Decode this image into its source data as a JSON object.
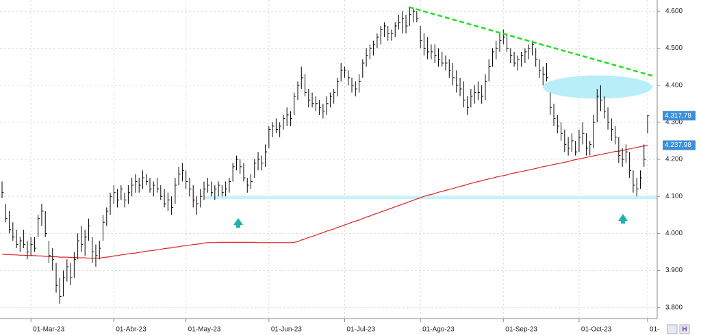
{
  "chart_data": {
    "type": "ohlc",
    "color": "#000000",
    "categories": [
      null,
      null,
      null,
      null,
      null,
      null,
      null,
      null,
      "01-Mar-23",
      null,
      null,
      null,
      null,
      null,
      null,
      null,
      null,
      null,
      null,
      null,
      null,
      null,
      null,
      null,
      null,
      null,
      null,
      null,
      null,
      null,
      null,
      "01-Abr-23",
      null,
      null,
      null,
      null,
      null,
      null,
      null,
      null,
      null,
      null,
      null,
      null,
      null,
      null,
      null,
      null,
      null,
      null,
      null,
      "01-May-23",
      null,
      null,
      null,
      null,
      null,
      null,
      null,
      null,
      null,
      null,
      null,
      null,
      null,
      null,
      null,
      null,
      null,
      null,
      null,
      null,
      null,
      null,
      "01-Jun-23",
      null,
      null,
      null,
      null,
      null,
      null,
      null,
      null,
      null,
      null,
      null,
      null,
      null,
      null,
      null,
      null,
      null,
      null,
      null,
      null,
      "01-Jul-23",
      null,
      null,
      null,
      null,
      null,
      null,
      null,
      null,
      null,
      null,
      null,
      null,
      null,
      null,
      null,
      null,
      null,
      null,
      null,
      null,
      "01-Ago-23",
      null,
      null,
      null,
      null,
      null,
      null,
      null,
      null,
      null,
      null,
      null,
      null,
      null,
      null,
      null,
      null,
      null,
      null,
      null,
      null,
      null,
      null,
      "01-Sep-23",
      null,
      null,
      null,
      null,
      null,
      null,
      null,
      null,
      null,
      null,
      null,
      null,
      null,
      null,
      null,
      null,
      null,
      null,
      null,
      null,
      "01-Oct-23",
      null,
      null,
      null,
      null,
      null,
      null,
      null,
      null,
      null,
      null,
      null,
      null,
      null,
      null,
      null,
      null,
      null,
      null,
      "01-"
    ],
    "high": [
      4.14,
      4.08,
      4.06,
      4.03,
      4.01,
      3.99,
      4.01,
      3.98,
      3.99,
      3.99,
      4.05,
      4.08,
      4.06,
      3.98,
      3.96,
      3.92,
      3.88,
      3.9,
      3.93,
      3.92,
      3.95,
      4.0,
      4.02,
      4.01,
      4.04,
      3.99,
      3.97,
      3.98,
      4.05,
      4.07,
      4.11,
      4.13,
      4.12,
      4.13,
      4.11,
      4.13,
      4.15,
      4.16,
      4.15,
      4.17,
      4.16,
      4.15,
      4.14,
      4.15,
      4.13,
      4.12,
      4.11,
      4.1,
      4.15,
      4.18,
      4.19,
      4.17,
      4.15,
      4.13,
      4.1,
      4.12,
      4.14,
      4.15,
      4.14,
      4.13,
      4.14,
      4.13,
      4.14,
      4.15,
      4.19,
      4.21,
      4.2,
      4.19,
      4.15,
      4.16,
      4.2,
      4.22,
      4.21,
      4.24,
      4.29,
      4.3,
      4.31,
      4.3,
      4.32,
      4.34,
      4.33,
      4.38,
      4.41,
      4.45,
      4.43,
      4.39,
      4.38,
      4.37,
      4.36,
      4.35,
      4.37,
      4.38,
      4.39,
      4.42,
      4.46,
      4.45,
      4.44,
      4.42,
      4.41,
      4.43,
      4.47,
      4.5,
      4.51,
      4.52,
      4.54,
      4.56,
      4.57,
      4.56,
      4.55,
      4.57,
      4.59,
      4.6,
      4.59,
      4.61,
      4.61,
      4.6,
      4.56,
      4.54,
      4.53,
      4.51,
      4.51,
      4.5,
      4.49,
      4.48,
      4.47,
      4.46,
      4.44,
      4.42,
      4.41,
      4.37,
      4.39,
      4.4,
      4.41,
      4.4,
      4.43,
      4.47,
      4.5,
      4.52,
      4.54,
      4.55,
      4.54,
      4.5,
      4.49,
      4.48,
      4.49,
      4.5,
      4.51,
      4.52,
      4.5,
      4.47,
      4.45,
      4.46,
      4.38,
      4.35,
      4.32,
      4.3,
      4.28,
      4.26,
      4.27,
      4.25,
      4.28,
      4.3,
      4.27,
      4.25,
      4.32,
      4.39,
      4.4,
      4.37,
      4.34,
      4.31,
      4.29,
      4.26,
      4.23,
      4.24,
      4.22,
      4.17,
      4.15,
      4.17,
      4.24,
      4.32
    ],
    "low": [
      4.095,
      4.03,
      4.0,
      3.98,
      3.96,
      3.95,
      3.96,
      3.93,
      3.94,
      3.95,
      3.99,
      4.02,
      3.99,
      3.92,
      3.9,
      3.84,
      3.81,
      3.83,
      3.87,
      3.86,
      3.88,
      3.93,
      3.95,
      3.94,
      3.98,
      3.92,
      3.91,
      3.93,
      3.98,
      4.02,
      4.05,
      4.08,
      4.07,
      4.09,
      4.07,
      4.08,
      4.1,
      4.11,
      4.11,
      4.12,
      4.13,
      4.11,
      4.1,
      4.11,
      4.09,
      4.07,
      4.06,
      4.05,
      4.08,
      4.13,
      4.14,
      4.12,
      4.1,
      4.07,
      4.05,
      4.07,
      4.09,
      4.11,
      4.1,
      4.09,
      4.1,
      4.1,
      4.1,
      4.11,
      4.14,
      4.17,
      4.16,
      4.14,
      4.11,
      4.12,
      4.15,
      4.17,
      4.17,
      4.18,
      4.23,
      4.26,
      4.27,
      4.26,
      4.28,
      4.29,
      4.29,
      4.32,
      4.36,
      4.39,
      4.37,
      4.34,
      4.34,
      4.33,
      4.32,
      4.31,
      4.32,
      4.34,
      4.35,
      4.37,
      4.41,
      4.42,
      4.4,
      4.38,
      4.37,
      4.38,
      4.42,
      4.45,
      4.47,
      4.48,
      4.5,
      4.51,
      4.53,
      4.52,
      4.52,
      4.53,
      4.55,
      4.54,
      4.54,
      4.56,
      4.57,
      4.57,
      4.5,
      4.48,
      4.47,
      4.47,
      4.46,
      4.45,
      4.45,
      4.44,
      4.42,
      4.4,
      4.38,
      4.37,
      4.34,
      4.32,
      4.34,
      4.35,
      4.36,
      4.35,
      4.36,
      4.41,
      4.45,
      4.47,
      4.49,
      4.51,
      4.49,
      4.46,
      4.45,
      4.44,
      4.45,
      4.46,
      4.47,
      4.48,
      4.45,
      4.42,
      4.4,
      4.41,
      4.32,
      4.29,
      4.27,
      4.25,
      4.22,
      4.21,
      4.22,
      4.21,
      4.22,
      4.24,
      4.21,
      4.21,
      4.23,
      4.3,
      4.33,
      4.31,
      4.28,
      4.25,
      4.24,
      4.19,
      4.18,
      4.19,
      4.15,
      4.11,
      4.1,
      4.12,
      4.18,
      4.27
    ],
    "close": [
      4.11,
      4.04,
      4.01,
      3.99,
      3.97,
      3.98,
      3.97,
      3.95,
      3.97,
      3.96,
      4.04,
      4.06,
      4.0,
      3.94,
      3.93,
      3.86,
      3.83,
      3.88,
      3.91,
      3.88,
      3.93,
      3.98,
      3.97,
      3.99,
      4.02,
      3.95,
      3.94,
      3.96,
      4.03,
      4.06,
      4.1,
      4.11,
      4.09,
      4.12,
      4.09,
      4.11,
      4.13,
      4.14,
      4.13,
      4.15,
      4.14,
      4.12,
      4.13,
      4.12,
      4.1,
      4.08,
      4.09,
      4.07,
      4.13,
      4.16,
      4.17,
      4.14,
      4.12,
      4.09,
      4.08,
      4.1,
      4.12,
      4.13,
      4.11,
      4.12,
      4.13,
      4.11,
      4.12,
      4.14,
      4.18,
      4.2,
      4.18,
      4.15,
      4.13,
      4.14,
      4.19,
      4.2,
      4.19,
      4.22,
      4.28,
      4.29,
      4.28,
      4.29,
      4.31,
      4.32,
      4.31,
      4.37,
      4.4,
      4.42,
      4.38,
      4.36,
      4.35,
      4.35,
      4.34,
      4.33,
      4.35,
      4.37,
      4.38,
      4.41,
      4.44,
      4.44,
      4.42,
      4.4,
      4.39,
      4.41,
      4.46,
      4.48,
      4.5,
      4.51,
      4.53,
      4.55,
      4.56,
      4.54,
      4.54,
      4.56,
      4.57,
      4.58,
      4.56,
      4.59,
      4.6,
      4.58,
      4.52,
      4.5,
      4.49,
      4.49,
      4.48,
      4.47,
      4.46,
      4.46,
      4.44,
      4.42,
      4.4,
      4.39,
      4.36,
      4.34,
      4.37,
      4.38,
      4.38,
      4.37,
      4.41,
      4.45,
      4.49,
      4.5,
      4.52,
      4.53,
      4.5,
      4.48,
      4.46,
      4.47,
      4.48,
      4.49,
      4.5,
      4.51,
      4.47,
      4.44,
      4.43,
      4.42,
      4.34,
      4.31,
      4.29,
      4.27,
      4.24,
      4.23,
      4.25,
      4.22,
      4.26,
      4.27,
      4.23,
      4.24,
      4.3,
      4.37,
      4.36,
      4.33,
      4.3,
      4.28,
      4.26,
      4.21,
      4.2,
      4.22,
      4.17,
      4.13,
      4.12,
      4.15,
      4.2,
      4.3178
    ],
    "last_label": "4.317,78",
    "label_color": "#3d8fd8",
    "moving_average": {
      "color": "#e02020",
      "last_label": "4.237,98",
      "values": [
        3.944,
        3.943,
        3.943,
        3.942,
        3.942,
        3.941,
        3.941,
        3.94,
        3.94,
        3.94,
        3.939,
        3.939,
        3.938,
        3.938,
        3.937,
        3.937,
        3.936,
        3.936,
        3.936,
        3.935,
        3.935,
        3.934,
        3.934,
        3.934,
        3.933,
        3.933,
        3.933,
        3.933,
        3.935,
        3.936,
        3.937,
        3.939,
        3.94,
        3.942,
        3.943,
        3.945,
        3.946,
        3.947,
        3.949,
        3.95,
        3.952,
        3.953,
        3.954,
        3.956,
        3.957,
        3.959,
        3.96,
        3.961,
        3.963,
        3.964,
        3.966,
        3.967,
        3.968,
        3.97,
        3.971,
        3.972,
        3.974,
        3.975,
        3.975,
        3.975,
        3.976,
        3.976,
        3.976,
        3.976,
        3.976,
        3.976,
        3.976,
        3.976,
        3.976,
        3.976,
        3.976,
        3.975,
        3.975,
        3.975,
        3.975,
        3.975,
        3.975,
        3.975,
        3.975,
        3.975,
        3.975,
        3.976,
        3.978,
        3.982,
        3.985,
        3.989,
        3.992,
        3.995,
        3.999,
        4.002,
        4.006,
        4.009,
        4.012,
        4.016,
        4.019,
        4.023,
        4.026,
        4.03,
        4.033,
        4.036,
        4.04,
        4.044,
        4.047,
        4.051,
        4.054,
        4.058,
        4.061,
        4.065,
        4.068,
        4.072,
        4.075,
        4.079,
        4.082,
        4.086,
        4.089,
        4.093,
        4.096,
        4.1,
        4.103,
        4.105,
        4.108,
        4.111,
        4.113,
        4.116,
        4.119,
        4.121,
        4.124,
        4.127,
        4.129,
        4.132,
        4.135,
        4.137,
        4.14,
        4.142,
        4.145,
        4.147,
        4.149,
        4.152,
        4.154,
        4.156,
        4.158,
        4.161,
        4.163,
        4.165,
        4.167,
        4.169,
        4.171,
        4.173,
        4.175,
        4.178,
        4.18,
        4.182,
        4.184,
        4.186,
        4.188,
        4.19,
        4.192,
        4.194,
        4.197,
        4.199,
        4.201,
        4.203,
        4.205,
        4.207,
        4.209,
        4.211,
        4.213,
        4.215,
        4.217,
        4.219,
        4.221,
        4.222,
        4.224,
        4.226,
        4.228,
        4.23,
        4.232,
        4.234,
        4.236,
        4.23798
      ]
    },
    "trendline": {
      "color": "#22dd22",
      "start": 4.611,
      "end": 4.4245
    },
    "support": {
      "color": "#c6f2f8",
      "value": 4.097
    },
    "zone": {
      "color": "#b8eef8",
      "value": 4.395
    },
    "ylim": [
      3.77,
      4.63
    ],
    "yticks": [
      {
        "value": 3.8,
        "label": "3.800"
      },
      {
        "value": 3.9,
        "label": "3.900"
      },
      {
        "value": 4.0,
        "label": "4.000"
      },
      {
        "value": 4.1,
        "label": "4.100"
      },
      {
        "value": 4.2,
        "label": "4.200"
      },
      {
        "value": 4.3,
        "label": "4.300"
      },
      {
        "value": 4.4,
        "label": "4.400"
      },
      {
        "value": 4.5,
        "label": "4.500"
      },
      {
        "value": 4.6,
        "label": "4.600"
      }
    ],
    "grid": true
  }
}
